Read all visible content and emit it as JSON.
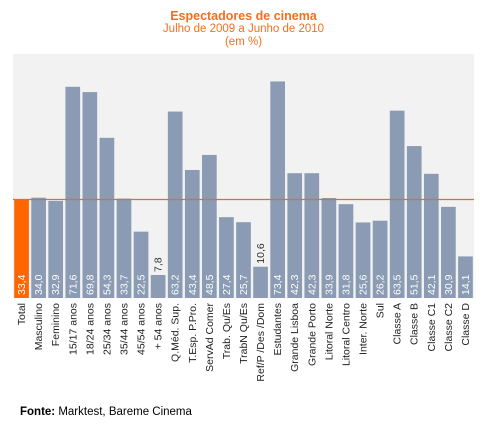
{
  "chart_data": {
    "type": "bar",
    "title": "Espectadores de cinema",
    "subtitle": "Julho de 2009 a Junho de 2010",
    "unit": "(em %)",
    "categories": [
      "Total",
      "Masculino",
      "Feminino",
      "15/17 anos",
      "18/24 anos",
      "25/34 anos",
      "35/44 anos",
      "45/54 anos",
      "+ 54  anos",
      "Q.Méd. Sup.",
      "T.Esp. P.Pro.",
      "ServAd Comer",
      "Trab. Qu/Es",
      "TrabN Qu/Es",
      "Ref/P /Des /Dom",
      "Estudantes",
      "Grande Lisboa",
      "Grande Porto",
      "Litoral Norte",
      "Litoral Centro",
      "Inter. Norte",
      "Sul",
      "Classe A",
      "Classe B",
      "Classe C1",
      "Classe C2",
      "Classe D"
    ],
    "values": [
      33.4,
      34.0,
      32.9,
      71.6,
      69.8,
      54.3,
      33.7,
      22.5,
      7.8,
      63.2,
      43.4,
      48.5,
      27.4,
      25.7,
      10.6,
      73.4,
      42.3,
      42.3,
      33.9,
      31.8,
      25.6,
      26.2,
      63.5,
      51.5,
      42.1,
      30.9,
      14.1
    ],
    "value_labels": [
      "33,4",
      "34,0",
      "32,9",
      "71,6",
      "69,8",
      "54,3",
      "33,7",
      "22,5",
      "7,8",
      "63,2",
      "43,4",
      "48,5",
      "27,4",
      "25,7",
      "10,6",
      "73,4",
      "42,3",
      "42,3",
      "33,9",
      "31,8",
      "25,6",
      "26,2",
      "63,5",
      "51,5",
      "42,1",
      "30,9",
      "14,1"
    ],
    "highlight_index": 0,
    "reference_line": 33.4,
    "ylim": [
      0,
      80
    ],
    "grid": false,
    "xlabel": "",
    "ylabel": "",
    "colors": {
      "bar": "#8a9bb3",
      "highlight": "#ff6600",
      "reference_line": "#cc7a22",
      "plot_background": "#f2f2f2",
      "value_label_inside": "#ffffff",
      "value_label_outside": "#333333",
      "title": "#f26f21"
    }
  },
  "source": {
    "label": "Fonte:",
    "text": " Marktest, Bareme Cinema"
  }
}
